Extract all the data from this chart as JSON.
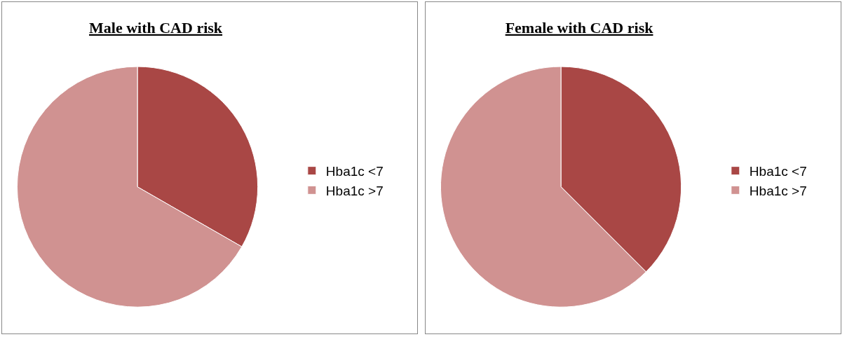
{
  "chart_data": [
    {
      "type": "pie",
      "title": "Male with CAD risk",
      "categories": [
        "Hba1c <7",
        "Hba1c >7"
      ],
      "values": [
        33.3,
        66.7
      ],
      "colors": [
        "#a94745",
        "#d09291"
      ],
      "legend": "right"
    },
    {
      "type": "pie",
      "title": "Female with CAD risk",
      "categories": [
        "Hba1c <7",
        "Hba1c >7"
      ],
      "values": [
        37.5,
        62.5
      ],
      "colors": [
        "#a94745",
        "#d09291"
      ],
      "legend": "right"
    }
  ]
}
